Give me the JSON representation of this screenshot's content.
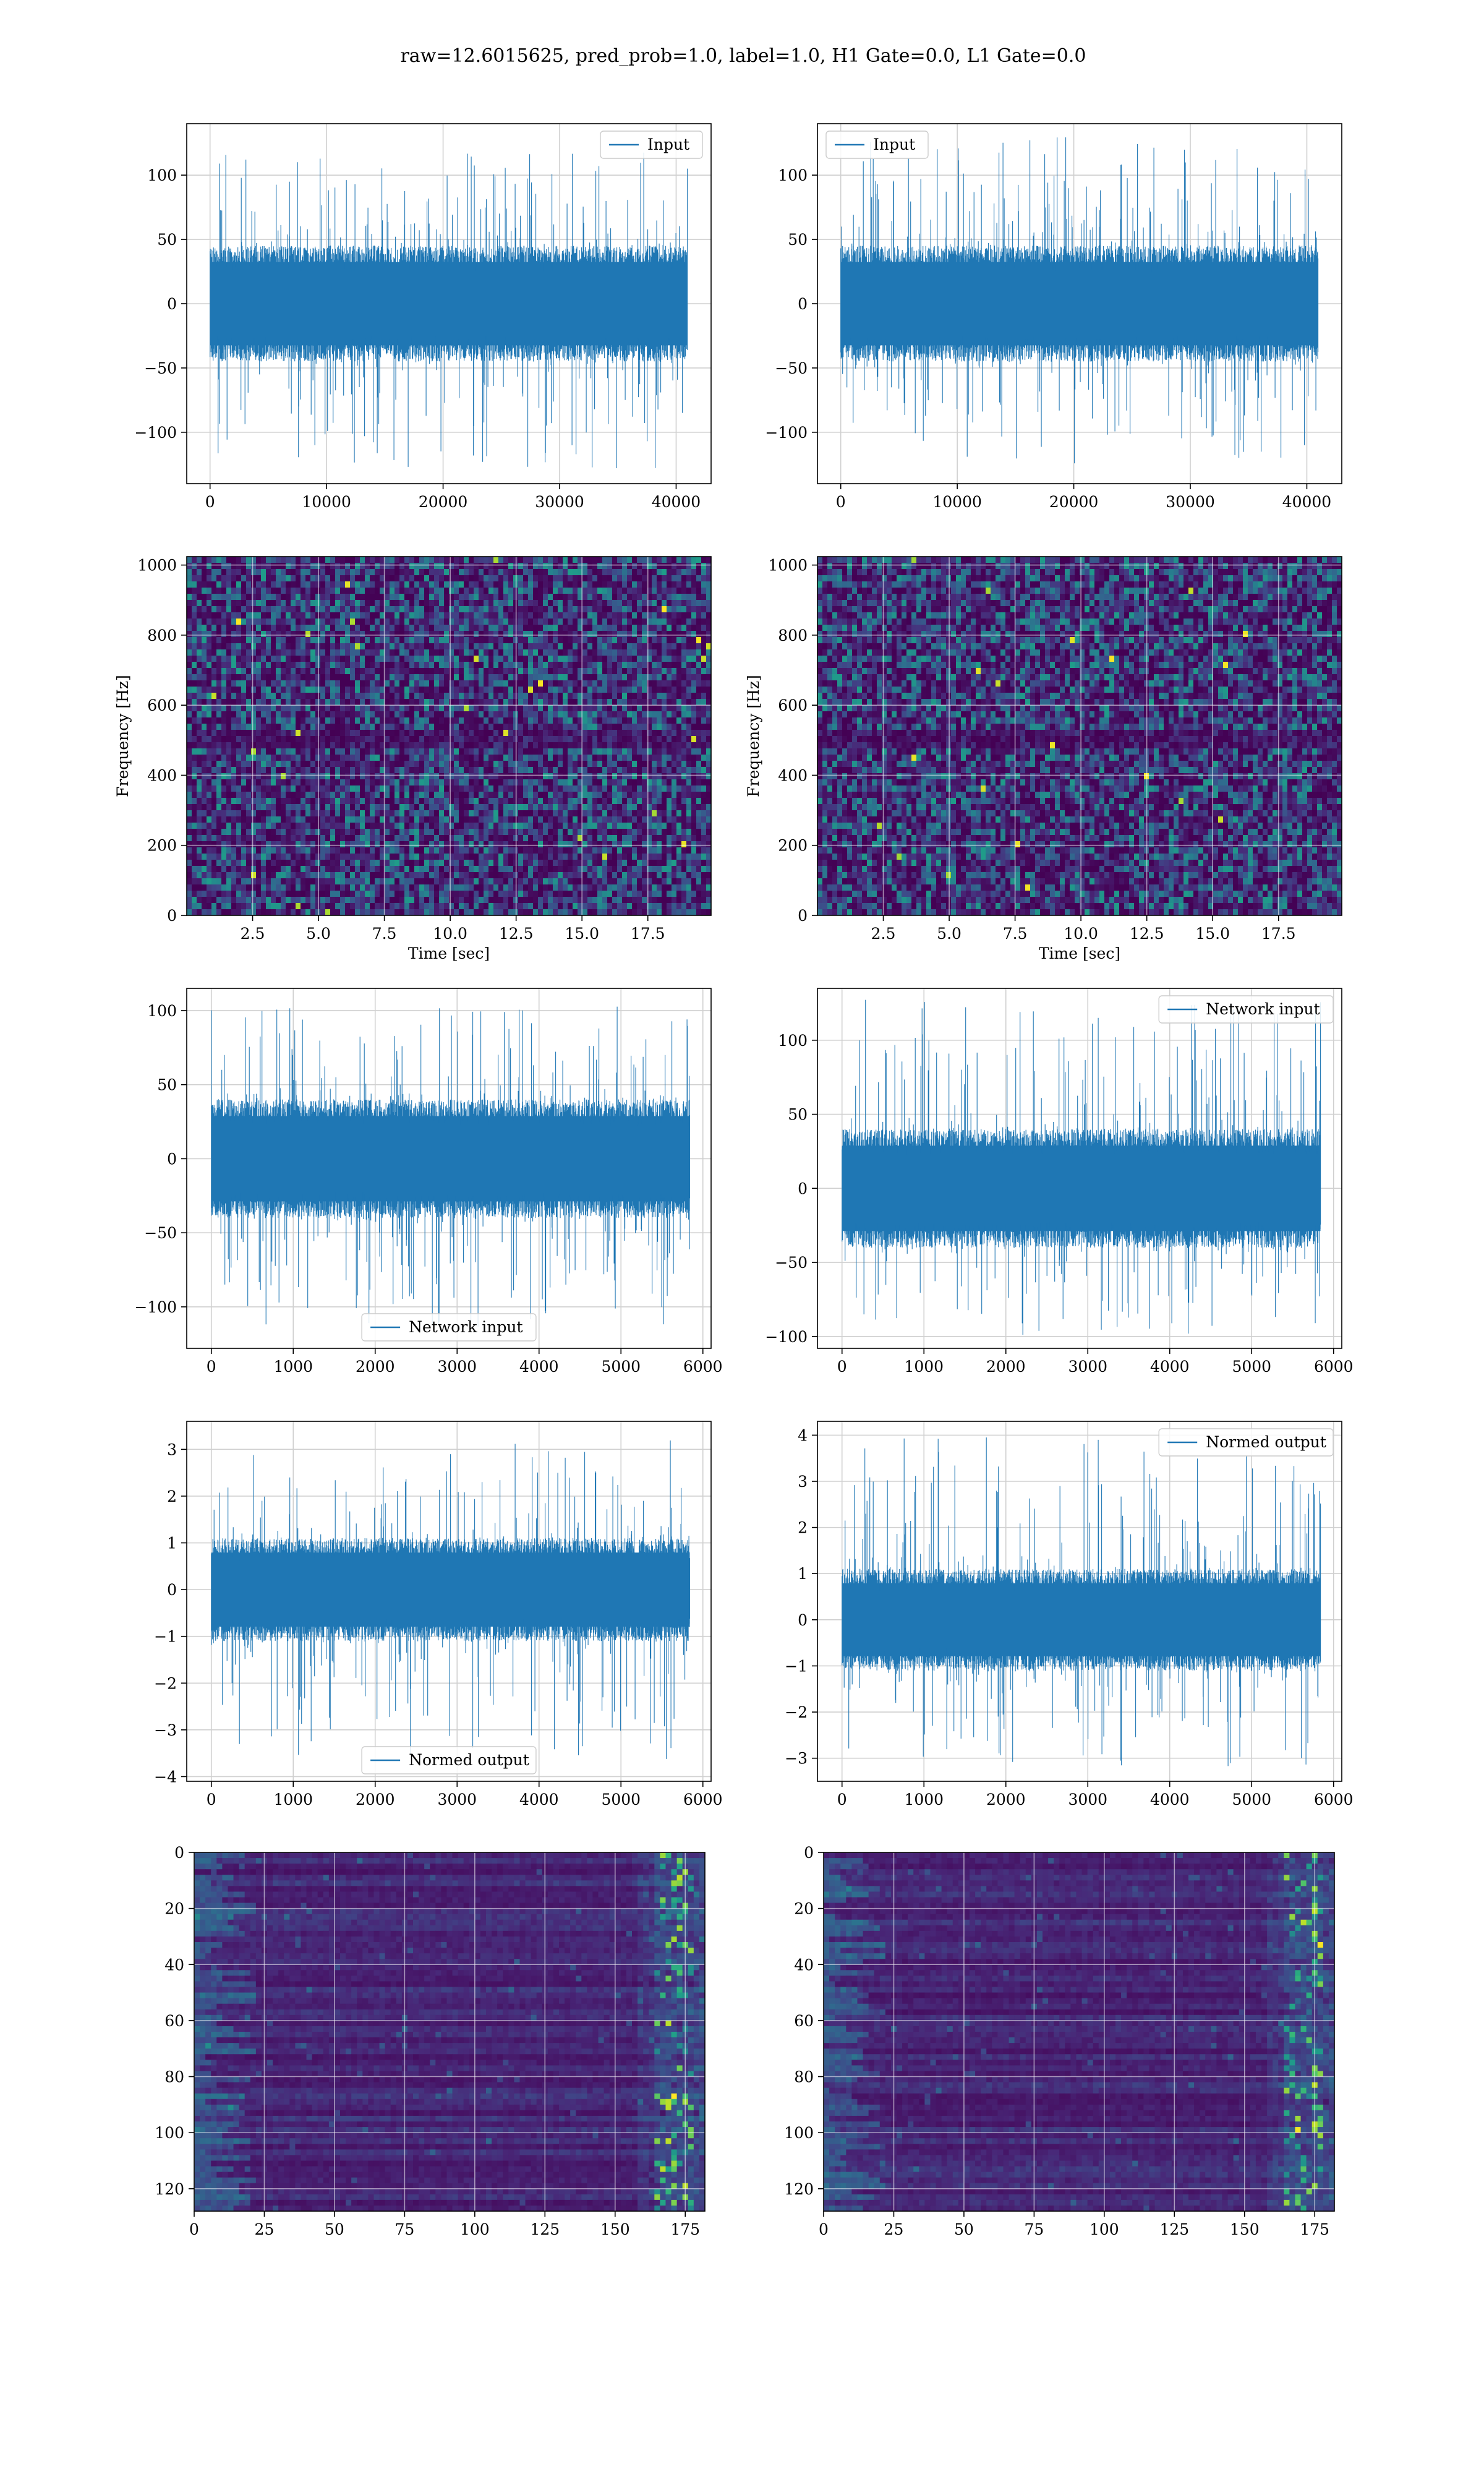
{
  "figure": {
    "title": "raw=12.6015625, pred_prob=1.0, label=1.0, H1 Gate=0.0, L1 Gate=0.0"
  },
  "colors": {
    "series": "#1f77b4",
    "grid": "#d0d0d0",
    "viridis_dark": "#440154",
    "viridis_blue": "#31688e",
    "viridis_teal": "#21918c",
    "viridis_green": "#5ec962",
    "viridis_yellow": "#fde725"
  },
  "chart_data": [
    {
      "id": "raw-h1",
      "type": "line",
      "series": [
        {
          "name": "Input",
          "values": []
        }
      ],
      "x_range": [
        0,
        40960
      ],
      "y_envelope": {
        "core": [
          -45,
          45
        ],
        "peak": [
          -130,
          118
        ]
      },
      "xlim": [
        -2000,
        43000
      ],
      "ylim": [
        -140,
        140
      ],
      "xticks": [
        0,
        10000,
        20000,
        30000,
        40000
      ],
      "xtick_labels": [
        "0",
        "10000",
        "20000",
        "30000",
        "40000"
      ],
      "yticks": [
        -100,
        -50,
        0,
        50,
        100
      ],
      "ytick_labels": [
        "−100",
        "−50",
        "0",
        "50",
        "100"
      ],
      "xlabel": "",
      "ylabel": "",
      "grid": true,
      "legend": "upper-right"
    },
    {
      "id": "raw-l1",
      "type": "line",
      "series": [
        {
          "name": "Input",
          "values": []
        }
      ],
      "x_range": [
        0,
        40960
      ],
      "y_envelope": {
        "core": [
          -45,
          45
        ],
        "peak": [
          -125,
          132
        ]
      },
      "xlim": [
        -2000,
        43000
      ],
      "ylim": [
        -140,
        140
      ],
      "xticks": [
        0,
        10000,
        20000,
        30000,
        40000
      ],
      "xtick_labels": [
        "0",
        "10000",
        "20000",
        "30000",
        "40000"
      ],
      "yticks": [
        -100,
        -50,
        0,
        50,
        100
      ],
      "ytick_labels": [
        "−100",
        "−50",
        "0",
        "50",
        "100"
      ],
      "xlabel": "",
      "ylabel": "",
      "grid": true,
      "legend": "upper-left"
    },
    {
      "id": "spec-h1",
      "type": "heatmap",
      "xlim": [
        0,
        19.9
      ],
      "ylim": [
        0,
        1024
      ],
      "xticks": [
        2.5,
        5.0,
        7.5,
        10.0,
        12.5,
        15.0,
        17.5
      ],
      "xtick_labels": [
        "2.5",
        "5.0",
        "7.5",
        "10.0",
        "12.5",
        "15.0",
        "17.5"
      ],
      "yticks": [
        0,
        200,
        400,
        600,
        800,
        1000
      ],
      "ytick_labels": [
        "0",
        "200",
        "400",
        "600",
        "800",
        "1000"
      ],
      "xlabel": "Time [sec]",
      "ylabel": "Frequency [Hz]",
      "grid": true,
      "colormap": "viridis"
    },
    {
      "id": "spec-l1",
      "type": "heatmap",
      "xlim": [
        0,
        19.9
      ],
      "ylim": [
        0,
        1024
      ],
      "xticks": [
        2.5,
        5.0,
        7.5,
        10.0,
        12.5,
        15.0,
        17.5
      ],
      "xtick_labels": [
        "2.5",
        "5.0",
        "7.5",
        "10.0",
        "12.5",
        "15.0",
        "17.5"
      ],
      "yticks": [
        0,
        200,
        400,
        600,
        800,
        1000
      ],
      "ytick_labels": [
        "0",
        "200",
        "400",
        "600",
        "800",
        "1000"
      ],
      "xlabel": "Time [sec]",
      "ylabel": "Frequency [Hz]",
      "grid": true,
      "colormap": "viridis"
    },
    {
      "id": "net-h1",
      "type": "line",
      "series": [
        {
          "name": "Network input",
          "values": []
        }
      ],
      "x_range": [
        0,
        5840
      ],
      "y_envelope": {
        "core": [
          -40,
          40
        ],
        "peak": [
          -115,
          104
        ]
      },
      "xlim": [
        -300,
        6100
      ],
      "ylim": [
        -128,
        115
      ],
      "xticks": [
        0,
        1000,
        2000,
        3000,
        4000,
        5000,
        6000
      ],
      "xtick_labels": [
        "0",
        "1000",
        "2000",
        "3000",
        "4000",
        "5000",
        "6000"
      ],
      "yticks": [
        -100,
        -50,
        0,
        50,
        100
      ],
      "ytick_labels": [
        "−100",
        "−50",
        "0",
        "50",
        "100"
      ],
      "xlabel": "",
      "ylabel": "",
      "grid": true,
      "legend": "lower-center"
    },
    {
      "id": "net-l1",
      "type": "line",
      "series": [
        {
          "name": "Network input",
          "values": []
        }
      ],
      "x_range": [
        0,
        5840
      ],
      "y_envelope": {
        "core": [
          -40,
          40
        ],
        "peak": [
          -100,
          128
        ]
      },
      "xlim": [
        -300,
        6100
      ],
      "ylim": [
        -108,
        135
      ],
      "xticks": [
        0,
        1000,
        2000,
        3000,
        4000,
        5000,
        6000
      ],
      "xtick_labels": [
        "0",
        "1000",
        "2000",
        "3000",
        "4000",
        "5000",
        "6000"
      ],
      "yticks": [
        -100,
        -50,
        0,
        50,
        100
      ],
      "ytick_labels": [
        "−100",
        "−50",
        "0",
        "50",
        "100"
      ],
      "xlabel": "",
      "ylabel": "",
      "grid": true,
      "legend": "upper-right"
    },
    {
      "id": "norm-h1",
      "type": "line",
      "series": [
        {
          "name": "Normed output",
          "values": []
        }
      ],
      "x_range": [
        0,
        5840
      ],
      "y_envelope": {
        "core": [
          -1.1,
          1.1
        ],
        "peak": [
          -3.7,
          3.3
        ]
      },
      "xlim": [
        -300,
        6100
      ],
      "ylim": [
        -4.1,
        3.6
      ],
      "xticks": [
        0,
        1000,
        2000,
        3000,
        4000,
        5000,
        6000
      ],
      "xtick_labels": [
        "0",
        "1000",
        "2000",
        "3000",
        "4000",
        "5000",
        "6000"
      ],
      "yticks": [
        -4,
        -3,
        -2,
        -1,
        0,
        1,
        2,
        3
      ],
      "ytick_labels": [
        "−4",
        "−3",
        "−2",
        "−1",
        "0",
        "1",
        "2",
        "3"
      ],
      "xlabel": "",
      "ylabel": "",
      "grid": true,
      "legend": "lower-center"
    },
    {
      "id": "norm-l1",
      "type": "line",
      "series": [
        {
          "name": "Normed output",
          "values": []
        }
      ],
      "x_range": [
        0,
        5840
      ],
      "y_envelope": {
        "core": [
          -1.1,
          1.1
        ],
        "peak": [
          -3.2,
          4.0
        ]
      },
      "xlim": [
        -300,
        6100
      ],
      "ylim": [
        -3.5,
        4.3
      ],
      "xticks": [
        0,
        1000,
        2000,
        3000,
        4000,
        5000,
        6000
      ],
      "xtick_labels": [
        "0",
        "1000",
        "2000",
        "3000",
        "4000",
        "5000",
        "6000"
      ],
      "yticks": [
        -3,
        -2,
        -1,
        0,
        1,
        2,
        3,
        4
      ],
      "ytick_labels": [
        "−3",
        "−2",
        "−1",
        "0",
        "1",
        "2",
        "3",
        "4"
      ],
      "xlabel": "",
      "ylabel": "",
      "grid": true,
      "legend": "upper-right"
    },
    {
      "id": "feat-h1",
      "type": "heatmap",
      "xlim": [
        0,
        182
      ],
      "ylim": [
        128,
        0
      ],
      "xticks": [
        0,
        25,
        50,
        75,
        100,
        125,
        150,
        175
      ],
      "xtick_labels": [
        "0",
        "25",
        "50",
        "75",
        "100",
        "125",
        "150",
        "175"
      ],
      "yticks": [
        0,
        20,
        40,
        60,
        80,
        100,
        120
      ],
      "ytick_labels": [
        "0",
        "20",
        "40",
        "60",
        "80",
        "100",
        "120"
      ],
      "xlabel": "",
      "ylabel": "",
      "grid": true,
      "colormap": "viridis"
    },
    {
      "id": "feat-l1",
      "type": "heatmap",
      "xlim": [
        0,
        182
      ],
      "ylim": [
        128,
        0
      ],
      "xticks": [
        0,
        25,
        50,
        75,
        100,
        125,
        150,
        175
      ],
      "xtick_labels": [
        "0",
        "25",
        "50",
        "75",
        "100",
        "125",
        "150",
        "175"
      ],
      "yticks": [
        0,
        20,
        40,
        60,
        80,
        100,
        120
      ],
      "ytick_labels": [
        "0",
        "20",
        "40",
        "60",
        "80",
        "100",
        "120"
      ],
      "xlabel": "",
      "ylabel": "",
      "grid": true,
      "colormap": "viridis"
    }
  ]
}
